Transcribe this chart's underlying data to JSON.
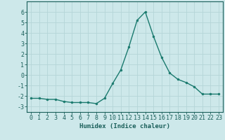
{
  "x": [
    0,
    1,
    2,
    3,
    4,
    5,
    6,
    7,
    8,
    9,
    10,
    11,
    12,
    13,
    14,
    15,
    16,
    17,
    18,
    19,
    20,
    21,
    22,
    23
  ],
  "y": [
    -2.2,
    -2.2,
    -2.3,
    -2.3,
    -2.5,
    -2.6,
    -2.6,
    -2.6,
    -2.7,
    -2.2,
    -0.8,
    0.5,
    2.7,
    5.2,
    6.0,
    3.7,
    1.7,
    0.2,
    -0.4,
    -0.7,
    -1.1,
    -1.8,
    -1.8,
    -1.8
  ],
  "line_color": "#1a7a6e",
  "marker": "o",
  "marker_size": 2.0,
  "bg_color": "#cde8ea",
  "grid_color": "#b5d5d8",
  "tick_label_color": "#1a5f5a",
  "xlabel": "Humidex (Indice chaleur)",
  "xlabel_fontsize": 6.5,
  "tick_fontsize": 6.0,
  "ylim": [
    -3.5,
    7.0
  ],
  "xlim": [
    -0.5,
    23.5
  ],
  "yticks": [
    -3,
    -2,
    -1,
    0,
    1,
    2,
    3,
    4,
    5,
    6
  ],
  "xticks": [
    0,
    1,
    2,
    3,
    4,
    5,
    6,
    7,
    8,
    9,
    10,
    11,
    12,
    13,
    14,
    15,
    16,
    17,
    18,
    19,
    20,
    21,
    22,
    23
  ]
}
